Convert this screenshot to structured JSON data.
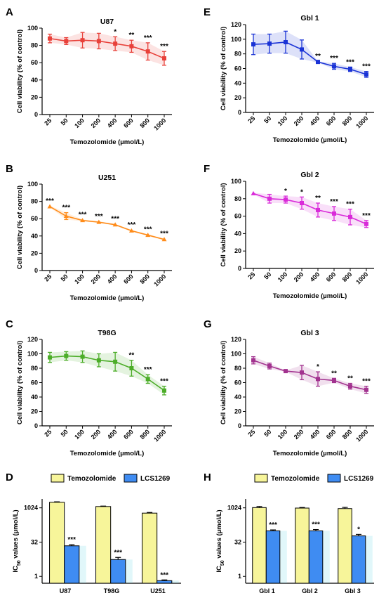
{
  "chart_data": [
    {
      "panel": "A",
      "title": "U87",
      "type": "line",
      "color": "#e8413a",
      "xlabel": "Temozolomide (µmol/L)",
      "ylabel": "Cell viability (% of control)",
      "ylim": [
        0,
        100
      ],
      "yticks": [
        0,
        20,
        40,
        60,
        80,
        100
      ],
      "categories": [
        "25",
        "50",
        "100",
        "200",
        "400",
        "600",
        "800",
        "1000"
      ],
      "values": [
        88,
        85,
        86,
        85,
        82,
        79,
        73,
        65
      ],
      "errors": [
        5,
        4,
        9,
        9,
        8,
        7,
        10,
        8
      ],
      "significance": [
        "",
        "",
        "",
        "",
        "*",
        "**",
        "***",
        "***"
      ]
    },
    {
      "panel": "B",
      "title": "U251",
      "type": "line",
      "color": "#ff8c1a",
      "xlabel": "Temozolomide (µmol/L)",
      "ylabel": "Cell viability (% of control)",
      "ylim": [
        0,
        100
      ],
      "yticks": [
        0,
        20,
        40,
        60,
        80,
        100
      ],
      "categories": [
        "25",
        "50",
        "100",
        "200",
        "400",
        "600",
        "800",
        "1000"
      ],
      "values": [
        74,
        63,
        58,
        56,
        53,
        46,
        41,
        36
      ],
      "errors": [
        1,
        4,
        1,
        1,
        1,
        1,
        1,
        1
      ],
      "significance": [
        "***",
        "***",
        "***",
        "***",
        "***",
        "***",
        "***",
        "***"
      ]
    },
    {
      "panel": "C",
      "title": "T98G",
      "type": "line",
      "color": "#4cad28",
      "xlabel": "Temozolomide (µmol/L)",
      "ylabel": "Cell viability (% of control)",
      "ylim": [
        0,
        120
      ],
      "yticks": [
        0,
        20,
        40,
        60,
        80,
        100,
        120
      ],
      "categories": [
        "25",
        "50",
        "100",
        "200",
        "400",
        "600",
        "800",
        "1000"
      ],
      "values": [
        95,
        97,
        96,
        91,
        89,
        80,
        65,
        49
      ],
      "errors": [
        7,
        6,
        8,
        9,
        13,
        11,
        6,
        6
      ],
      "significance": [
        "",
        "",
        "",
        "",
        "",
        "**",
        "***",
        "***"
      ]
    },
    {
      "panel": "E",
      "title": "Gbl 1",
      "type": "line",
      "color": "#1a33d6",
      "xlabel": "Temozolomide (µmol/L)",
      "ylabel": "Cell viability (% of control)",
      "ylim": [
        0,
        120
      ],
      "yticks": [
        0,
        20,
        40,
        60,
        80,
        100,
        120
      ],
      "categories": [
        "25",
        "50",
        "100",
        "200",
        "400",
        "600",
        "800",
        "1000"
      ],
      "values": [
        93,
        94,
        96,
        86,
        69,
        63,
        59,
        52
      ],
      "errors": [
        14,
        13,
        15,
        13,
        1,
        4,
        3,
        4
      ],
      "significance": [
        "",
        "",
        "",
        "",
        "**",
        "***",
        "***",
        "***"
      ]
    },
    {
      "panel": "F",
      "title": "Gbl 2",
      "type": "line",
      "color": "#d92ad9",
      "xlabel": "Temozolomide (µmol/L)",
      "ylabel": "Cell viability (% of control)",
      "ylim": [
        0,
        100
      ],
      "yticks": [
        0,
        20,
        40,
        60,
        80,
        100
      ],
      "categories": [
        "25",
        "50",
        "100",
        "200",
        "400",
        "600",
        "800",
        "1000"
      ],
      "values": [
        86,
        80,
        79,
        75,
        67,
        63,
        59,
        51
      ],
      "errors": [
        1,
        5,
        4,
        7,
        8,
        8,
        9,
        4
      ],
      "significance": [
        "",
        "",
        "*",
        "*",
        "**",
        "***",
        "***",
        "***"
      ]
    },
    {
      "panel": "G",
      "title": "Gbl 3",
      "type": "line",
      "color": "#a2328f",
      "xlabel": "Temozolomide (µmol/L)",
      "ylabel": "Cell viability (% of control)",
      "ylim": [
        0,
        120
      ],
      "yticks": [
        0,
        20,
        40,
        60,
        80,
        100,
        120
      ],
      "categories": [
        "25",
        "50",
        "100",
        "200",
        "400",
        "600",
        "800",
        "1000"
      ],
      "values": [
        91,
        83,
        76,
        74,
        65,
        63,
        55,
        50
      ],
      "errors": [
        5,
        4,
        1,
        10,
        10,
        3,
        4,
        5
      ],
      "significance": [
        "",
        "",
        "",
        "",
        "*",
        "**",
        "**",
        "***"
      ]
    },
    {
      "panel": "D",
      "type": "bar",
      "yscale": "log2",
      "ylabel_main": "IC",
      "ylabel_sub": "50",
      "ylabel_tail": " values (µmol/L)",
      "yticks": [
        1,
        32,
        1024
      ],
      "categories": [
        "U87",
        "T98G",
        "U251"
      ],
      "legend": [
        "Temozolomide",
        "LCS1269"
      ],
      "series": [
        {
          "name": "Temozolomide",
          "color": "#f7f59a",
          "values": [
            1800,
            1170,
            600
          ],
          "errors": [
            80,
            50,
            40
          ]
        },
        {
          "name": "LCS1269",
          "color": "#3f8cf2",
          "values": [
            22,
            5.5,
            0.65
          ],
          "errors": [
            2.5,
            1.3,
            0.05
          ]
        }
      ],
      "significance": [
        "***",
        "***",
        "***"
      ]
    },
    {
      "panel": "H",
      "type": "bar",
      "yscale": "log2",
      "ylabel_main": "IC",
      "ylabel_sub": "50",
      "ylabel_tail": " values (µmol/L)",
      "yticks": [
        1,
        32,
        1024
      ],
      "categories": [
        "Gbl 1",
        "Gbl 2",
        "Gbl 3"
      ],
      "legend": [
        "Temozolomide",
        "LCS1269"
      ],
      "series": [
        {
          "name": "Temozolomide",
          "color": "#f7f59a",
          "values": [
            1050,
            1000,
            950
          ],
          "errors": [
            120,
            60,
            120
          ]
        },
        {
          "name": "LCS1269",
          "color": "#3f8cf2",
          "values": [
            100,
            100,
            60
          ],
          "errors": [
            10,
            14,
            10
          ]
        }
      ],
      "significance": [
        "***",
        "***",
        "*"
      ]
    }
  ]
}
